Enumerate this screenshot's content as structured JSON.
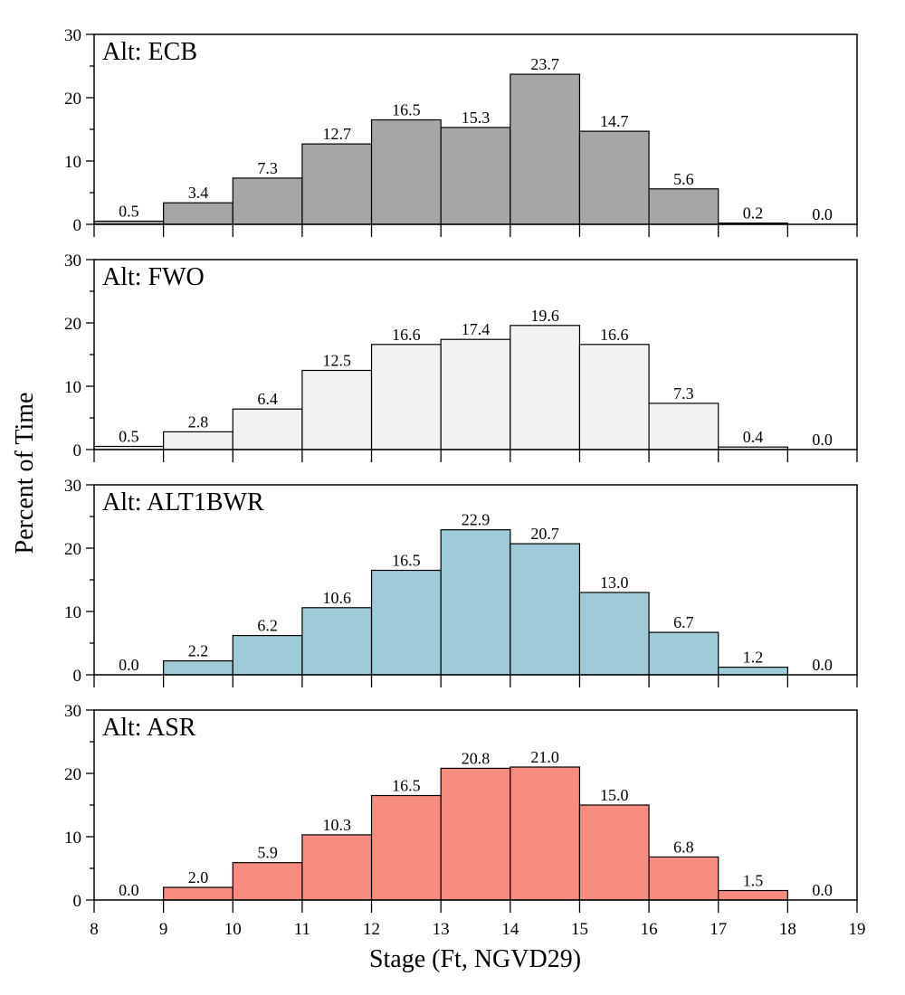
{
  "chart_data": {
    "type": "bar",
    "xlabel": "Stage (Ft, NGVD29)",
    "ylabel": "Percent of Time",
    "bins": [
      8,
      9,
      10,
      11,
      12,
      13,
      14,
      15,
      16,
      17,
      18,
      19
    ],
    "x_ticks": [
      "8",
      "9",
      "10",
      "11",
      "12",
      "13",
      "14",
      "15",
      "16",
      "17",
      "18",
      "19"
    ],
    "y_ticks": [
      "0",
      "10",
      "20",
      "30"
    ],
    "ylim": [
      0,
      30
    ],
    "xlim": [
      8,
      19
    ],
    "panels": [
      {
        "title": "Alt:  ECB",
        "color": "#a6a6a6",
        "values": [
          0.5,
          3.4,
          7.3,
          12.7,
          16.5,
          15.3,
          23.7,
          14.7,
          5.6,
          0.2,
          0.0
        ],
        "labels": [
          "0.5",
          "3.4",
          "7.3",
          "12.7",
          "16.5",
          "15.3",
          "23.7",
          "14.7",
          "5.6",
          "0.2",
          "0.0"
        ]
      },
      {
        "title": "Alt:  FWO",
        "color": "#f2f2f2",
        "values": [
          0.5,
          2.8,
          6.4,
          12.5,
          16.6,
          17.4,
          19.6,
          16.6,
          7.3,
          0.4,
          0.0
        ],
        "labels": [
          "0.5",
          "2.8",
          "6.4",
          "12.5",
          "16.6",
          "17.4",
          "19.6",
          "16.6",
          "7.3",
          "0.4",
          "0.0"
        ]
      },
      {
        "title": "Alt:  ALT1BWR",
        "color": "#9fcbd8",
        "values": [
          0.0,
          2.2,
          6.2,
          10.6,
          16.5,
          22.9,
          20.7,
          13.0,
          6.7,
          1.2,
          0.0
        ],
        "labels": [
          "0.0",
          "2.2",
          "6.2",
          "10.6",
          "16.5",
          "22.9",
          "20.7",
          "13.0",
          "6.7",
          "1.2",
          "0.0"
        ]
      },
      {
        "title": "Alt:  ASR",
        "color": "#f78c80",
        "values": [
          0.0,
          2.0,
          5.9,
          10.3,
          16.5,
          20.8,
          21.0,
          15.0,
          6.8,
          1.5,
          0.0
        ],
        "labels": [
          "0.0",
          "2.0",
          "5.9",
          "10.3",
          "16.5",
          "20.8",
          "21.0",
          "15.0",
          "6.8",
          "1.5",
          "0.0"
        ]
      }
    ]
  }
}
